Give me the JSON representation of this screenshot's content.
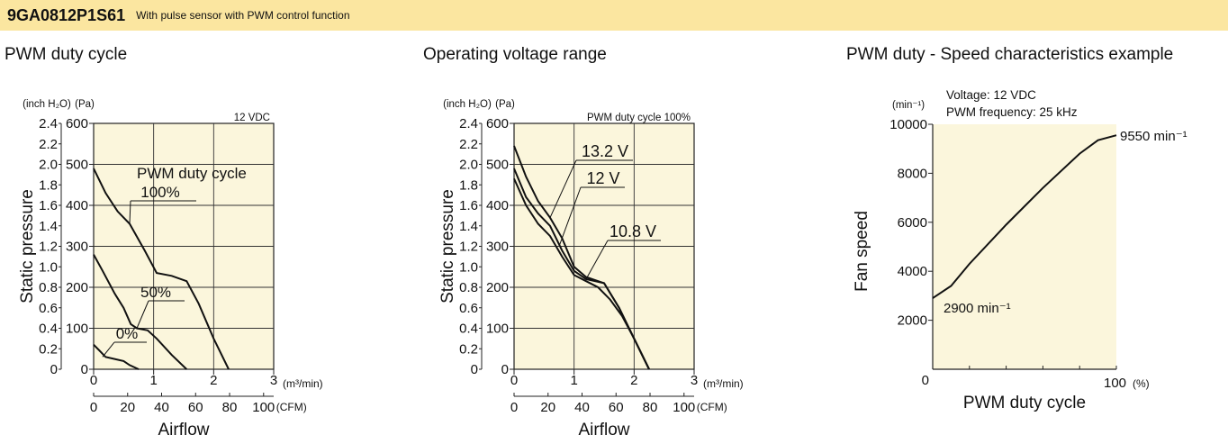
{
  "header": {
    "model": "9GA0812P1S61",
    "subtitle": "With pulse sensor with PWM control function",
    "background": "#fbe6a0"
  },
  "plot_background": "#fbf6dc",
  "chart_data": [
    {
      "type": "line",
      "title": "PWM duty cycle",
      "condition": "12 VDC",
      "legend_title": "PWM duty cycle",
      "xlabel": "Airflow",
      "ylabel": "Static pressure",
      "x_unit_primary": "(m³/min)",
      "x_unit_secondary": "(CFM)",
      "y_unit_primary": "(Pa)",
      "y_unit_secondary": "(inch H₂O)",
      "xlim": [
        0,
        3
      ],
      "ylim": [
        0,
        600
      ],
      "x_ticks": [
        "0",
        "1",
        "2",
        "3"
      ],
      "x2_ticks": [
        "0",
        "20",
        "40",
        "60",
        "80",
        "100"
      ],
      "y_ticks": [
        "0",
        "100",
        "200",
        "300",
        "400",
        "500",
        "600"
      ],
      "y2_ticks": [
        "0",
        "0.2",
        "0.4",
        "0.6",
        "0.8",
        "1.0",
        "1.2",
        "1.4",
        "1.6",
        "1.8",
        "2.0",
        "2.2",
        "2.4"
      ],
      "series": [
        {
          "name": "100%",
          "points": [
            [
              0,
              490
            ],
            [
              0.2,
              430
            ],
            [
              0.4,
              385
            ],
            [
              0.6,
              355
            ],
            [
              0.85,
              290
            ],
            [
              1.05,
              235
            ],
            [
              1.3,
              228
            ],
            [
              1.55,
              215
            ],
            [
              1.75,
              160
            ],
            [
              2.0,
              75
            ],
            [
              2.25,
              0
            ]
          ]
        },
        {
          "name": "50%",
          "points": [
            [
              0,
              280
            ],
            [
              0.15,
              240
            ],
            [
              0.35,
              185
            ],
            [
              0.5,
              150
            ],
            [
              0.62,
              110
            ],
            [
              0.72,
              100
            ],
            [
              0.9,
              95
            ],
            [
              1.05,
              75
            ],
            [
              1.3,
              35
            ],
            [
              1.55,
              0
            ]
          ]
        },
        {
          "name": "0%",
          "points": [
            [
              0,
              60
            ],
            [
              0.1,
              45
            ],
            [
              0.2,
              30
            ],
            [
              0.35,
              25
            ],
            [
              0.5,
              20
            ],
            [
              0.6,
              10
            ],
            [
              0.75,
              0
            ]
          ]
        }
      ]
    },
    {
      "type": "line",
      "title": "Operating voltage range",
      "condition": "PWM duty cycle 100%",
      "xlabel": "Airflow",
      "ylabel": "Static pressure",
      "x_unit_primary": "(m³/min)",
      "x_unit_secondary": "(CFM)",
      "y_unit_primary": "(Pa)",
      "y_unit_secondary": "(inch H₂O)",
      "xlim": [
        0,
        3
      ],
      "ylim": [
        0,
        600
      ],
      "x_ticks": [
        "0",
        "1",
        "2",
        "3"
      ],
      "x2_ticks": [
        "0",
        "20",
        "40",
        "60",
        "80",
        "100"
      ],
      "y_ticks": [
        "0",
        "100",
        "200",
        "300",
        "400",
        "500",
        "600"
      ],
      "y2_ticks": [
        "0",
        "0.2",
        "0.4",
        "0.6",
        "0.8",
        "1.0",
        "1.2",
        "1.4",
        "1.6",
        "1.8",
        "2.0",
        "2.2",
        "2.4"
      ],
      "series": [
        {
          "name": "13.2 V",
          "points": [
            [
              0,
              545
            ],
            [
              0.2,
              470
            ],
            [
              0.4,
              410
            ],
            [
              0.6,
              370
            ],
            [
              0.8,
              320
            ],
            [
              1.0,
              250
            ],
            [
              1.2,
              225
            ],
            [
              1.5,
              210
            ],
            [
              1.75,
              150
            ],
            [
              2.0,
              75
            ],
            [
              2.25,
              0
            ]
          ]
        },
        {
          "name": "12 V",
          "points": [
            [
              0,
              490
            ],
            [
              0.2,
              420
            ],
            [
              0.4,
              380
            ],
            [
              0.6,
              350
            ],
            [
              0.8,
              290
            ],
            [
              1.0,
              240
            ],
            [
              1.2,
              220
            ],
            [
              1.5,
              210
            ],
            [
              1.75,
              150
            ],
            [
              2.0,
              75
            ],
            [
              2.25,
              0
            ]
          ]
        },
        {
          "name": "10.8 V",
          "points": [
            [
              0,
              465
            ],
            [
              0.2,
              400
            ],
            [
              0.4,
              355
            ],
            [
              0.6,
              325
            ],
            [
              0.8,
              275
            ],
            [
              1.0,
              230
            ],
            [
              1.2,
              215
            ],
            [
              1.4,
              200
            ],
            [
              1.6,
              170
            ],
            [
              1.8,
              130
            ],
            [
              2.0,
              75
            ],
            [
              2.25,
              0
            ]
          ]
        }
      ]
    },
    {
      "type": "line",
      "title": "PWM duty - Speed characteristics example",
      "condition_lines": [
        "Voltage: 12 VDC",
        "PWM frequency: 25 kHz"
      ],
      "xlabel": "PWM duty cycle",
      "ylabel": "Fan speed",
      "x_unit": "(%)",
      "y_unit": "(min⁻¹)",
      "xlim": [
        0,
        100
      ],
      "ylim": [
        0,
        10000
      ],
      "x_ticks": [
        "0",
        "100"
      ],
      "y_ticks": [
        "2000",
        "4000",
        "6000",
        "8000",
        "10000"
      ],
      "annotations": [
        "2900 min⁻¹",
        "9550 min⁻¹"
      ],
      "series": [
        {
          "points": [
            [
              0,
              2900
            ],
            [
              10,
              3400
            ],
            [
              20,
              4300
            ],
            [
              40,
              5900
            ],
            [
              60,
              7400
            ],
            [
              80,
              8800
            ],
            [
              90,
              9350
            ],
            [
              100,
              9550
            ]
          ]
        }
      ]
    }
  ]
}
